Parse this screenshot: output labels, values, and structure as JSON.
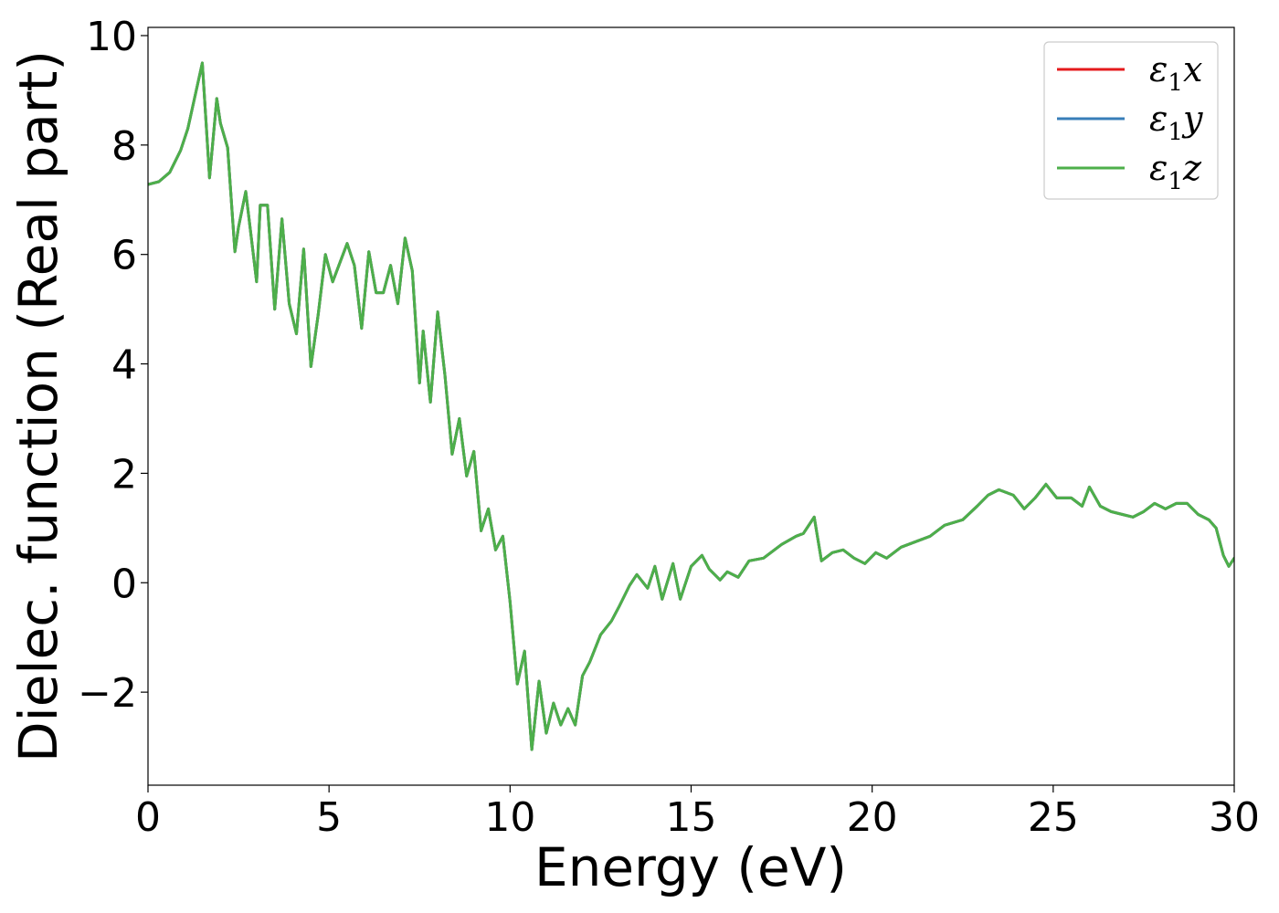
{
  "chart_data": {
    "type": "line",
    "title": "",
    "xlabel": "Energy (eV)",
    "ylabel": "Dielec. function (Real part)",
    "xlim": [
      0,
      30
    ],
    "ylim": [
      -3.7,
      10.15
    ],
    "x_ticks": [
      0,
      5,
      10,
      15,
      20,
      25,
      30
    ],
    "y_ticks": [
      -2,
      0,
      2,
      4,
      6,
      8,
      10
    ],
    "x_tick_labels": [
      "0",
      "5",
      "10",
      "15",
      "20",
      "25",
      "30"
    ],
    "y_tick_labels": [
      "−2",
      "0",
      "2",
      "4",
      "6",
      "8",
      "10"
    ],
    "grid": false,
    "legend_position": "top-right",
    "series": [
      {
        "name": "ε₁x",
        "name_main": "ε",
        "name_sub": "1",
        "name_tail": "x",
        "color": "#e41a1c",
        "x": [
          0,
          0.3,
          0.6,
          0.9,
          1.1,
          1.3,
          1.5,
          1.7,
          1.9,
          2.0,
          2.2,
          2.4,
          2.5,
          2.7,
          2.8,
          3.0,
          3.1,
          3.3,
          3.5,
          3.7,
          3.9,
          4.1,
          4.3,
          4.5,
          4.7,
          4.9,
          5.1,
          5.3,
          5.5,
          5.7,
          5.9,
          6.1,
          6.3,
          6.5,
          6.7,
          6.9,
          7.1,
          7.3,
          7.5,
          7.6,
          7.8,
          8.0,
          8.2,
          8.4,
          8.6,
          8.8,
          9.0,
          9.2,
          9.4,
          9.6,
          9.8,
          10.0,
          10.2,
          10.4,
          10.6,
          10.8,
          11.0,
          11.2,
          11.4,
          11.6,
          11.8,
          12.0,
          12.2,
          12.5,
          12.8,
          13.0,
          13.3,
          13.5,
          13.8,
          14.0,
          14.2,
          14.5,
          14.7,
          15.0,
          15.3,
          15.5,
          15.8,
          16.0,
          16.3,
          16.6,
          17.0,
          17.5,
          17.9,
          18.1,
          18.4,
          18.6,
          18.9,
          19.2,
          19.5,
          19.8,
          20.1,
          20.4,
          20.8,
          21.2,
          21.6,
          22.0,
          22.5,
          22.9,
          23.2,
          23.5,
          23.9,
          24.2,
          24.5,
          24.8,
          25.1,
          25.5,
          25.8,
          26.0,
          26.3,
          26.6,
          26.9,
          27.2,
          27.5,
          27.8,
          28.1,
          28.4,
          28.7,
          29.0,
          29.3,
          29.5,
          29.7,
          29.85,
          30.0
        ],
        "y": [
          7.28,
          7.33,
          7.5,
          7.9,
          8.3,
          8.9,
          9.5,
          7.4,
          8.85,
          8.4,
          7.95,
          6.05,
          6.5,
          7.15,
          6.6,
          5.5,
          6.9,
          6.9,
          5.0,
          6.65,
          5.1,
          4.55,
          6.1,
          3.95,
          4.9,
          6.0,
          5.5,
          5.85,
          6.2,
          5.8,
          4.65,
          6.05,
          5.3,
          5.3,
          5.8,
          5.1,
          6.3,
          5.7,
          3.65,
          4.6,
          3.3,
          4.95,
          3.8,
          2.35,
          3.0,
          1.95,
          2.4,
          0.95,
          1.35,
          0.6,
          0.85,
          -0.35,
          -1.85,
          -1.25,
          -3.05,
          -1.8,
          -2.75,
          -2.2,
          -2.6,
          -2.3,
          -2.6,
          -1.7,
          -1.45,
          -0.95,
          -0.7,
          -0.45,
          -0.05,
          0.15,
          -0.1,
          0.3,
          -0.3,
          0.35,
          -0.3,
          0.3,
          0.5,
          0.25,
          0.05,
          0.2,
          0.1,
          0.4,
          0.45,
          0.7,
          0.85,
          0.9,
          1.2,
          0.4,
          0.55,
          0.6,
          0.45,
          0.35,
          0.55,
          0.45,
          0.65,
          0.75,
          0.85,
          1.05,
          1.15,
          1.4,
          1.6,
          1.7,
          1.6,
          1.35,
          1.55,
          1.8,
          1.55,
          1.55,
          1.4,
          1.75,
          1.4,
          1.3,
          1.25,
          1.2,
          1.3,
          1.45,
          1.35,
          1.45,
          1.45,
          1.25,
          1.15,
          1.0,
          0.5,
          0.3,
          0.45
        ]
      },
      {
        "name": "ε₁y",
        "name_main": "ε",
        "name_sub": "1",
        "name_tail": "y",
        "color": "#377eb8",
        "x": [
          0,
          0.3,
          0.6,
          0.9,
          1.1,
          1.3,
          1.5,
          1.7,
          1.9,
          2.0,
          2.2,
          2.4,
          2.5,
          2.7,
          2.8,
          3.0,
          3.1,
          3.3,
          3.5,
          3.7,
          3.9,
          4.1,
          4.3,
          4.5,
          4.7,
          4.9,
          5.1,
          5.3,
          5.5,
          5.7,
          5.9,
          6.1,
          6.3,
          6.5,
          6.7,
          6.9,
          7.1,
          7.3,
          7.5,
          7.6,
          7.8,
          8.0,
          8.2,
          8.4,
          8.6,
          8.8,
          9.0,
          9.2,
          9.4,
          9.6,
          9.8,
          10.0,
          10.2,
          10.4,
          10.6,
          10.8,
          11.0,
          11.2,
          11.4,
          11.6,
          11.8,
          12.0,
          12.2,
          12.5,
          12.8,
          13.0,
          13.3,
          13.5,
          13.8,
          14.0,
          14.2,
          14.5,
          14.7,
          15.0,
          15.3,
          15.5,
          15.8,
          16.0,
          16.3,
          16.6,
          17.0,
          17.5,
          17.9,
          18.1,
          18.4,
          18.6,
          18.9,
          19.2,
          19.5,
          19.8,
          20.1,
          20.4,
          20.8,
          21.2,
          21.6,
          22.0,
          22.5,
          22.9,
          23.2,
          23.5,
          23.9,
          24.2,
          24.5,
          24.8,
          25.1,
          25.5,
          25.8,
          26.0,
          26.3,
          26.6,
          26.9,
          27.2,
          27.5,
          27.8,
          28.1,
          28.4,
          28.7,
          29.0,
          29.3,
          29.5,
          29.7,
          29.85,
          30.0
        ],
        "y": [
          7.28,
          7.33,
          7.5,
          7.9,
          8.3,
          8.9,
          9.5,
          7.4,
          8.85,
          8.4,
          7.95,
          6.05,
          6.5,
          7.15,
          6.6,
          5.5,
          6.9,
          6.9,
          5.0,
          6.65,
          5.1,
          4.55,
          6.1,
          3.95,
          4.9,
          6.0,
          5.5,
          5.85,
          6.2,
          5.8,
          4.65,
          6.05,
          5.3,
          5.3,
          5.8,
          5.1,
          6.3,
          5.7,
          3.65,
          4.6,
          3.3,
          4.95,
          3.8,
          2.35,
          3.0,
          1.95,
          2.4,
          0.95,
          1.35,
          0.6,
          0.85,
          -0.35,
          -1.85,
          -1.25,
          -3.05,
          -1.8,
          -2.75,
          -2.2,
          -2.6,
          -2.3,
          -2.6,
          -1.7,
          -1.45,
          -0.95,
          -0.7,
          -0.45,
          -0.05,
          0.15,
          -0.1,
          0.3,
          -0.3,
          0.35,
          -0.3,
          0.3,
          0.5,
          0.25,
          0.05,
          0.2,
          0.1,
          0.4,
          0.45,
          0.7,
          0.85,
          0.9,
          1.2,
          0.4,
          0.55,
          0.6,
          0.45,
          0.35,
          0.55,
          0.45,
          0.65,
          0.75,
          0.85,
          1.05,
          1.15,
          1.4,
          1.6,
          1.7,
          1.6,
          1.35,
          1.55,
          1.8,
          1.55,
          1.55,
          1.4,
          1.75,
          1.4,
          1.3,
          1.25,
          1.2,
          1.3,
          1.45,
          1.35,
          1.45,
          1.45,
          1.25,
          1.15,
          1.0,
          0.5,
          0.3,
          0.45
        ]
      },
      {
        "name": "ε₁z",
        "name_main": "ε",
        "name_sub": "1",
        "name_tail": "z",
        "color": "#4daf4a",
        "x": [
          0,
          0.3,
          0.6,
          0.9,
          1.1,
          1.3,
          1.5,
          1.7,
          1.9,
          2.0,
          2.2,
          2.4,
          2.5,
          2.7,
          2.8,
          3.0,
          3.1,
          3.3,
          3.5,
          3.7,
          3.9,
          4.1,
          4.3,
          4.5,
          4.7,
          4.9,
          5.1,
          5.3,
          5.5,
          5.7,
          5.9,
          6.1,
          6.3,
          6.5,
          6.7,
          6.9,
          7.1,
          7.3,
          7.5,
          7.6,
          7.8,
          8.0,
          8.2,
          8.4,
          8.6,
          8.8,
          9.0,
          9.2,
          9.4,
          9.6,
          9.8,
          10.0,
          10.2,
          10.4,
          10.6,
          10.8,
          11.0,
          11.2,
          11.4,
          11.6,
          11.8,
          12.0,
          12.2,
          12.5,
          12.8,
          13.0,
          13.3,
          13.5,
          13.8,
          14.0,
          14.2,
          14.5,
          14.7,
          15.0,
          15.3,
          15.5,
          15.8,
          16.0,
          16.3,
          16.6,
          17.0,
          17.5,
          17.9,
          18.1,
          18.4,
          18.6,
          18.9,
          19.2,
          19.5,
          19.8,
          20.1,
          20.4,
          20.8,
          21.2,
          21.6,
          22.0,
          22.5,
          22.9,
          23.2,
          23.5,
          23.9,
          24.2,
          24.5,
          24.8,
          25.1,
          25.5,
          25.8,
          26.0,
          26.3,
          26.6,
          26.9,
          27.2,
          27.5,
          27.8,
          28.1,
          28.4,
          28.7,
          29.0,
          29.3,
          29.5,
          29.7,
          29.85,
          30.0
        ],
        "y": [
          7.28,
          7.33,
          7.5,
          7.9,
          8.3,
          8.9,
          9.5,
          7.4,
          8.85,
          8.4,
          7.95,
          6.05,
          6.5,
          7.15,
          6.6,
          5.5,
          6.9,
          6.9,
          5.0,
          6.65,
          5.1,
          4.55,
          6.1,
          3.95,
          4.9,
          6.0,
          5.5,
          5.85,
          6.2,
          5.8,
          4.65,
          6.05,
          5.3,
          5.3,
          5.8,
          5.1,
          6.3,
          5.7,
          3.65,
          4.6,
          3.3,
          4.95,
          3.8,
          2.35,
          3.0,
          1.95,
          2.4,
          0.95,
          1.35,
          0.6,
          0.85,
          -0.35,
          -1.85,
          -1.25,
          -3.05,
          -1.8,
          -2.75,
          -2.2,
          -2.6,
          -2.3,
          -2.6,
          -1.7,
          -1.45,
          -0.95,
          -0.7,
          -0.45,
          -0.05,
          0.15,
          -0.1,
          0.3,
          -0.3,
          0.35,
          -0.3,
          0.3,
          0.5,
          0.25,
          0.05,
          0.2,
          0.1,
          0.4,
          0.45,
          0.7,
          0.85,
          0.9,
          1.2,
          0.4,
          0.55,
          0.6,
          0.45,
          0.35,
          0.55,
          0.45,
          0.65,
          0.75,
          0.85,
          1.05,
          1.15,
          1.4,
          1.6,
          1.7,
          1.6,
          1.35,
          1.55,
          1.8,
          1.55,
          1.55,
          1.4,
          1.75,
          1.4,
          1.3,
          1.25,
          1.2,
          1.3,
          1.45,
          1.35,
          1.45,
          1.45,
          1.25,
          1.15,
          1.0,
          0.5,
          0.3,
          0.45
        ]
      }
    ]
  }
}
